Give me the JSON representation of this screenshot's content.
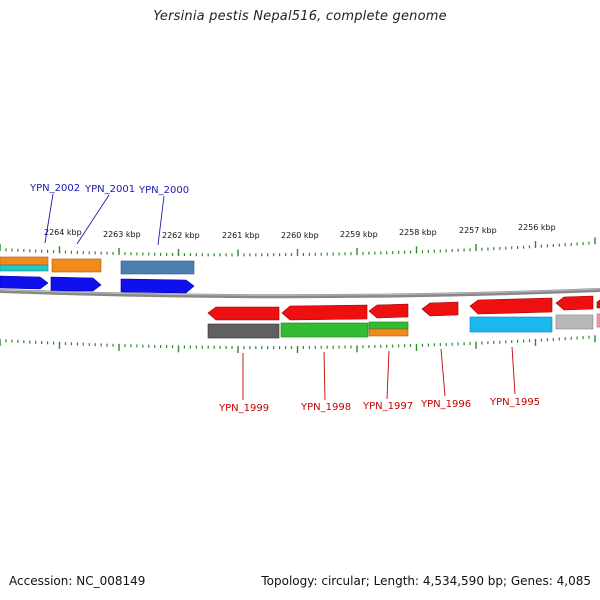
{
  "title": "Yersinia pestis Nepal516, complete genome",
  "footer": {
    "accession": "Accession: NC_008149",
    "topology": "Topology: circular; Length: 4,534,590 bp; Genes: 4,085"
  },
  "scale_labels": [
    "2264 kbp",
    "2263 kbp",
    "2262 kbp",
    "2261 kbp",
    "2260 kbp",
    "2259 kbp",
    "2258 kbp",
    "2257 kbp",
    "2256 kbp"
  ],
  "top_gene_labels": [
    "YPN_2002",
    "YPN_2001",
    "YPN_2000"
  ],
  "bottom_gene_labels": [
    "YPN_1999",
    "YPN_1998",
    "YPN_1997",
    "YPN_1996",
    "YPN_1995"
  ],
  "colors": {
    "backbone": "#888888",
    "tick": "#2a8a2a",
    "forward_cds": "#1010ee",
    "reverse_cds": "#ee1010",
    "orange": "#f08a1a",
    "teal": "#20c8c8",
    "steelblue": "#4a7fb0",
    "darkgray": "#606060",
    "green": "#33bb33",
    "cyan": "#1ab8ee",
    "lightgray": "#b8b8b8",
    "label_blue": "#1a1ab0",
    "label_red": "#c40000"
  }
}
